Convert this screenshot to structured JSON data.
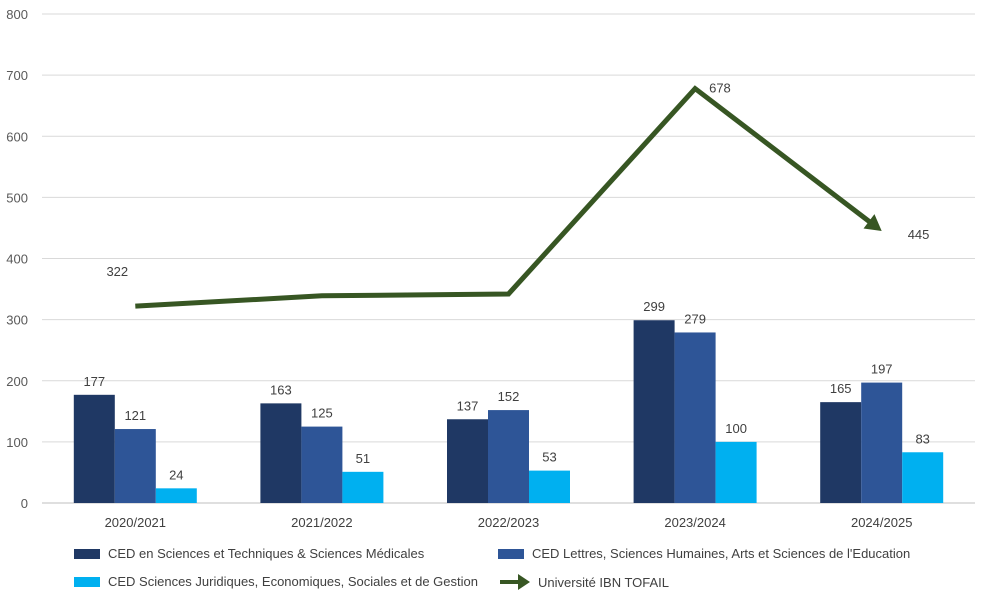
{
  "chart_data": {
    "type": "bar",
    "categories": [
      "2020/2021",
      "2021/2022",
      "2022/2023",
      "2023/2024",
      "2024/2025"
    ],
    "ylim": [
      0,
      800
    ],
    "yticks": [
      0,
      100,
      200,
      300,
      400,
      500,
      600,
      700,
      800
    ],
    "grid": true,
    "legend_position": "bottom",
    "series": [
      {
        "name": "CED en Sciences et Techniques & Sciences Médicales",
        "type": "bar",
        "color": "#1f3864",
        "values": [
          177,
          163,
          137,
          299,
          165
        ],
        "labels": [
          "177",
          "163",
          "137",
          "299",
          "165"
        ]
      },
      {
        "name": "CED Lettres, Sciences Humaines, Arts et Sciences de l'Education",
        "type": "bar",
        "color": "#2e5597",
        "values": [
          121,
          125,
          152,
          279,
          197
        ],
        "labels": [
          "121",
          "125",
          "152",
          "279",
          "197"
        ]
      },
      {
        "name": "CED Sciences Juridiques, Economiques, Sociales et de Gestion",
        "type": "bar",
        "color": "#00b0f0",
        "values": [
          24,
          51,
          53,
          100,
          83
        ],
        "labels": [
          "24",
          "51",
          "53",
          "100",
          "83"
        ]
      },
      {
        "name": "Université IBN TOFAIL",
        "type": "line",
        "color": "#375623",
        "values": [
          322,
          339,
          342,
          678,
          445
        ],
        "labels": [
          "322",
          "",
          "",
          "678",
          "445"
        ]
      }
    ]
  }
}
